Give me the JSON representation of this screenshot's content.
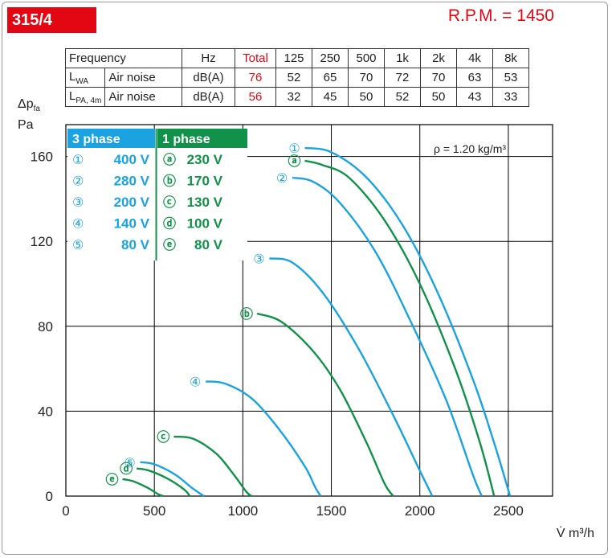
{
  "header": {
    "model": "315/4",
    "rpm": "R.P.M. = 1450"
  },
  "noise_table": {
    "header": [
      "Frequency",
      "Hz",
      "Total",
      "125",
      "250",
      "500",
      "1k",
      "2k",
      "4k",
      "8k"
    ],
    "rows": [
      {
        "symbol": "L",
        "symbol_sub": "WA",
        "label": "Air noise",
        "unit": "dB(A)",
        "total": "76",
        "values": [
          "52",
          "65",
          "70",
          "72",
          "70",
          "63",
          "53"
        ]
      },
      {
        "symbol": "L",
        "symbol_sub": "PA, 4m",
        "label": "Air noise",
        "unit": "dB(A)",
        "total": "56",
        "values": [
          "32",
          "45",
          "50",
          "52",
          "50",
          "43",
          "33"
        ]
      }
    ]
  },
  "colors": {
    "brand_red": "#e30613",
    "three_phase": "#1aa3e0",
    "one_phase": "#12914a",
    "grid": "#000000"
  },
  "chart_data": {
    "type": "line",
    "ylabel_symbol": "Δp",
    "ylabel_sub": "fa",
    "ylabel_unit": "Pa",
    "xlabel": "V̇ m³/h",
    "xlim": [
      0,
      2750
    ],
    "ylim": [
      0,
      175
    ],
    "xticks": [
      0,
      500,
      1000,
      1500,
      2000,
      2500
    ],
    "yticks": [
      0,
      40,
      80,
      120,
      160
    ],
    "grid": true,
    "density_note": "ρ = 1.20 kg/m³",
    "legend": {
      "three_phase_title": "3 phase",
      "one_phase_title": "1 phase",
      "three_phase": [
        {
          "marker": "①",
          "voltage": "400 V"
        },
        {
          "marker": "②",
          "voltage": "280 V"
        },
        {
          "marker": "③",
          "voltage": "200 V"
        },
        {
          "marker": "④",
          "voltage": "140 V"
        },
        {
          "marker": "⑤",
          "voltage": "80 V"
        }
      ],
      "one_phase": [
        {
          "marker": "ⓐ",
          "voltage": "230 V"
        },
        {
          "marker": "ⓑ",
          "voltage": "170 V"
        },
        {
          "marker": "ⓒ",
          "voltage": "130 V"
        },
        {
          "marker": "ⓓ",
          "voltage": "100 V"
        },
        {
          "marker": "ⓔ",
          "voltage": "80 V"
        }
      ]
    },
    "series": [
      {
        "name": "①",
        "group": "three_phase",
        "points": [
          [
            1350,
            164
          ],
          [
            1500,
            162
          ],
          [
            1700,
            150
          ],
          [
            1900,
            128
          ],
          [
            2100,
            96
          ],
          [
            2300,
            55
          ],
          [
            2420,
            25
          ],
          [
            2510,
            0
          ]
        ]
      },
      {
        "name": "ⓐ",
        "group": "one_phase",
        "points": [
          [
            1350,
            158
          ],
          [
            1450,
            156
          ],
          [
            1600,
            150
          ],
          [
            1800,
            130
          ],
          [
            2000,
            100
          ],
          [
            2200,
            60
          ],
          [
            2340,
            25
          ],
          [
            2420,
            0
          ]
        ]
      },
      {
        "name": "②",
        "group": "three_phase",
        "points": [
          [
            1280,
            150
          ],
          [
            1400,
            148
          ],
          [
            1550,
            138
          ],
          [
            1750,
            115
          ],
          [
            1950,
            82
          ],
          [
            2150,
            45
          ],
          [
            2300,
            10
          ],
          [
            2350,
            0
          ]
        ]
      },
      {
        "name": "③",
        "group": "three_phase",
        "points": [
          [
            1150,
            112
          ],
          [
            1280,
            110
          ],
          [
            1450,
            96
          ],
          [
            1650,
            70
          ],
          [
            1850,
            38
          ],
          [
            2000,
            12
          ],
          [
            2070,
            0
          ]
        ]
      },
      {
        "name": "ⓑ",
        "group": "one_phase",
        "points": [
          [
            1080,
            86
          ],
          [
            1220,
            82
          ],
          [
            1400,
            68
          ],
          [
            1550,
            50
          ],
          [
            1700,
            25
          ],
          [
            1800,
            6
          ],
          [
            1850,
            0
          ]
        ]
      },
      {
        "name": "④",
        "group": "three_phase",
        "points": [
          [
            790,
            54
          ],
          [
            900,
            53
          ],
          [
            1050,
            46
          ],
          [
            1200,
            32
          ],
          [
            1350,
            14
          ],
          [
            1410,
            4
          ],
          [
            1440,
            0
          ]
        ]
      },
      {
        "name": "ⓒ",
        "group": "one_phase",
        "points": [
          [
            610,
            28
          ],
          [
            720,
            27
          ],
          [
            850,
            20
          ],
          [
            950,
            10
          ],
          [
            1020,
            2
          ],
          [
            1050,
            0
          ]
        ]
      },
      {
        "name": "⑤",
        "group": "three_phase",
        "points": [
          [
            420,
            16
          ],
          [
            500,
            15
          ],
          [
            620,
            10
          ],
          [
            710,
            4
          ],
          [
            780,
            0
          ]
        ]
      },
      {
        "name": "ⓓ",
        "group": "one_phase",
        "points": [
          [
            400,
            13
          ],
          [
            470,
            12
          ],
          [
            580,
            8
          ],
          [
            670,
            3
          ],
          [
            700,
            0
          ]
        ]
      },
      {
        "name": "ⓔ",
        "group": "one_phase",
        "points": [
          [
            320,
            8
          ],
          [
            380,
            7
          ],
          [
            460,
            4
          ],
          [
            520,
            1
          ],
          [
            550,
            0
          ]
        ]
      }
    ]
  }
}
